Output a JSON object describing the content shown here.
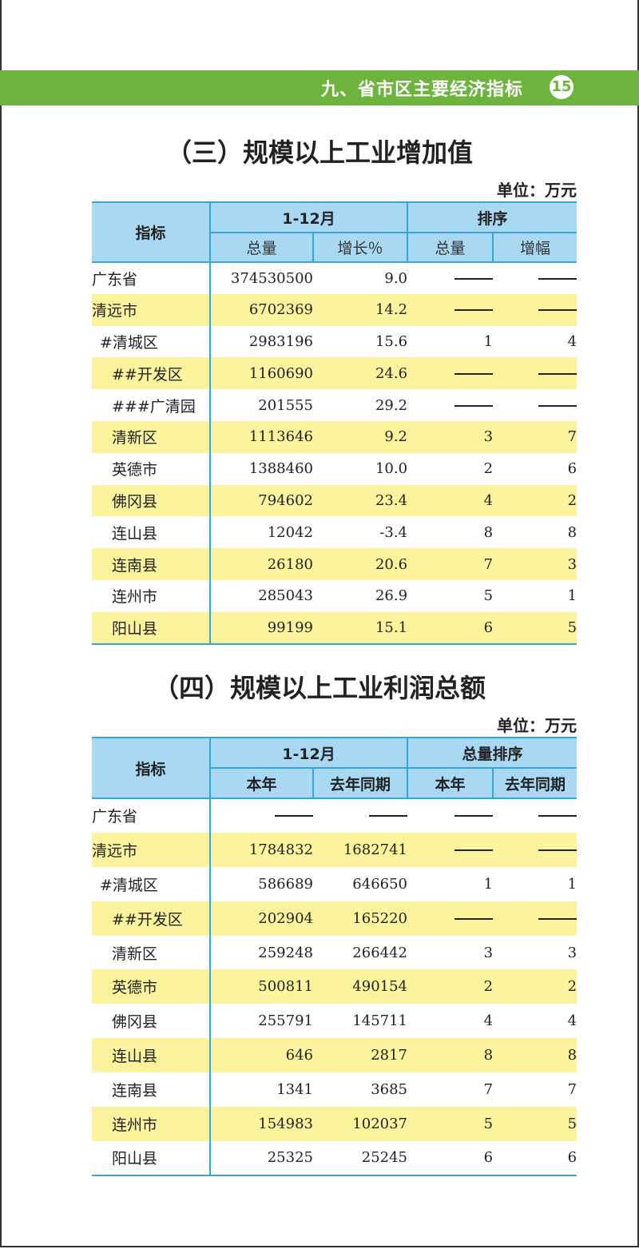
{
  "header": {
    "chapter_title": "九、省市区主要经济指标",
    "page_number": "15",
    "accent_color": "#6cb43c"
  },
  "table3": {
    "title": "（三）规模以上工业增加值",
    "unit": "单位：万元",
    "headers": {
      "indicator": "指标",
      "period": "1-12月",
      "rank": "排序",
      "sub": [
        "总量",
        "增长％",
        "总量",
        "增幅"
      ]
    },
    "rows": [
      {
        "name": "广东省",
        "indent": 0,
        "values": [
          "374530500",
          "9.0",
          "——",
          "——"
        ],
        "highlight": false
      },
      {
        "name": "清远市",
        "indent": 0,
        "values": [
          "6702369",
          "14.2",
          "——",
          "——"
        ],
        "highlight": true
      },
      {
        "name": "#清城区",
        "indent": 1,
        "values": [
          "2983196",
          "15.6",
          "1",
          "4"
        ],
        "highlight": false
      },
      {
        "name": "##开发区",
        "indent": 2,
        "values": [
          "1160690",
          "24.6",
          "——",
          "——"
        ],
        "highlight": true
      },
      {
        "name": "###广清园",
        "indent": 2,
        "values": [
          "201555",
          "29.2",
          "——",
          "——"
        ],
        "highlight": false
      },
      {
        "name": "清新区",
        "indent": 2,
        "values": [
          "1113646",
          "9.2",
          "3",
          "7"
        ],
        "highlight": true
      },
      {
        "name": "英德市",
        "indent": 2,
        "values": [
          "1388460",
          "10.0",
          "2",
          "6"
        ],
        "highlight": false
      },
      {
        "name": "佛冈县",
        "indent": 2,
        "values": [
          "794602",
          "23.4",
          "4",
          "2"
        ],
        "highlight": true
      },
      {
        "name": "连山县",
        "indent": 2,
        "values": [
          "12042",
          "-3.4",
          "8",
          "8"
        ],
        "highlight": false
      },
      {
        "name": "连南县",
        "indent": 2,
        "values": [
          "26180",
          "20.6",
          "7",
          "3"
        ],
        "highlight": true
      },
      {
        "name": "连州市",
        "indent": 2,
        "values": [
          "285043",
          "26.9",
          "5",
          "1"
        ],
        "highlight": false
      },
      {
        "name": "阳山县",
        "indent": 2,
        "values": [
          "99199",
          "15.1",
          "6",
          "5"
        ],
        "highlight": true
      }
    ]
  },
  "table4": {
    "title": "（四）规模以上工业利润总额",
    "unit": "单位：万元",
    "headers": {
      "indicator": "指标",
      "period": "1-12月",
      "rank": "总量排序",
      "sub": [
        "本年",
        "去年同期",
        "本年",
        "去年同期"
      ]
    },
    "rows": [
      {
        "name": "广东省",
        "indent": 0,
        "values": [
          "——",
          "——",
          "——",
          "——"
        ],
        "highlight": false
      },
      {
        "name": "清远市",
        "indent": 0,
        "values": [
          "1784832",
          "1682741",
          "——",
          "——"
        ],
        "highlight": true
      },
      {
        "name": "#清城区",
        "indent": 1,
        "values": [
          "586689",
          "646650",
          "1",
          "1"
        ],
        "highlight": false
      },
      {
        "name": "##开发区",
        "indent": 2,
        "values": [
          "202904",
          "165220",
          "——",
          "——"
        ],
        "highlight": true
      },
      {
        "name": "清新区",
        "indent": 2,
        "values": [
          "259248",
          "266442",
          "3",
          "3"
        ],
        "highlight": false
      },
      {
        "name": "英德市",
        "indent": 2,
        "values": [
          "500811",
          "490154",
          "2",
          "2"
        ],
        "highlight": true
      },
      {
        "name": "佛冈县",
        "indent": 2,
        "values": [
          "255791",
          "145711",
          "4",
          "4"
        ],
        "highlight": false
      },
      {
        "name": "连山县",
        "indent": 2,
        "values": [
          "646",
          "2817",
          "8",
          "8"
        ],
        "highlight": true
      },
      {
        "name": "连南县",
        "indent": 2,
        "values": [
          "1341",
          "3685",
          "7",
          "7"
        ],
        "highlight": false
      },
      {
        "name": "连州市",
        "indent": 2,
        "values": [
          "154983",
          "102037",
          "5",
          "5"
        ],
        "highlight": true
      },
      {
        "name": "阳山县",
        "indent": 2,
        "values": [
          "25325",
          "25245",
          "6",
          "6"
        ],
        "highlight": false
      }
    ]
  }
}
